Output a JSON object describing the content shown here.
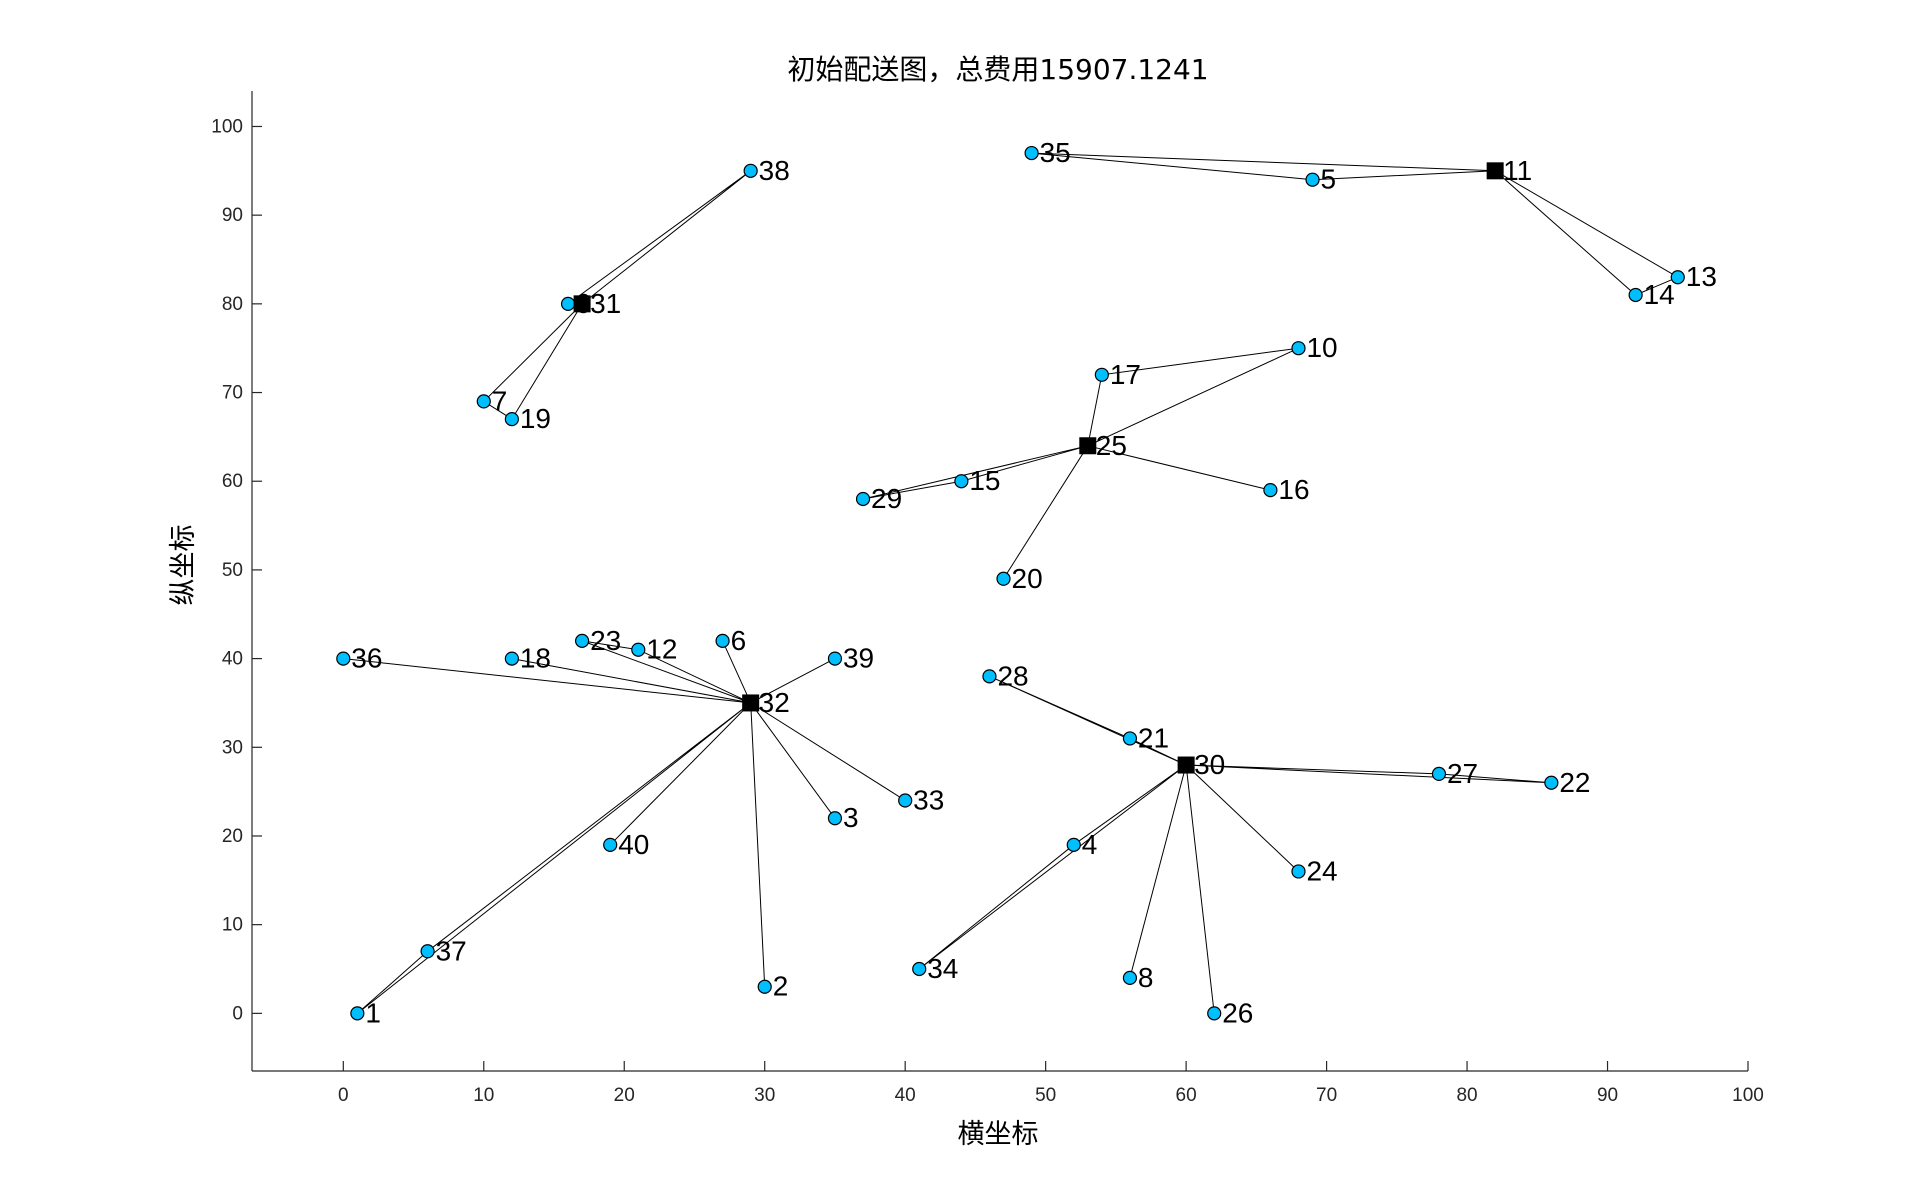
{
  "chart_data": {
    "type": "scatter",
    "title": "初始配送图，总费用15907.1241",
    "xlabel": "横坐标",
    "ylabel": "纵坐标",
    "xlim": [
      -6.5,
      100
    ],
    "ylim": [
      -6.5,
      104
    ],
    "xticks": [
      0,
      10,
      20,
      30,
      40,
      50,
      60,
      70,
      80,
      90,
      100
    ],
    "yticks": [
      0,
      10,
      20,
      30,
      40,
      50,
      60,
      70,
      80,
      90,
      100
    ],
    "grid": false,
    "colors": {
      "customer": "#00bfff",
      "depot": "#000000",
      "line": "#000000"
    },
    "customers": [
      {
        "id": "1",
        "x": 1,
        "y": 0
      },
      {
        "id": "2",
        "x": 30,
        "y": 3
      },
      {
        "id": "3",
        "x": 35,
        "y": 22
      },
      {
        "id": "4",
        "x": 52,
        "y": 19
      },
      {
        "id": "5",
        "x": 69,
        "y": 94
      },
      {
        "id": "6",
        "x": 27,
        "y": 42
      },
      {
        "id": "7",
        "x": 10,
        "y": 69
      },
      {
        "id": "8",
        "x": 56,
        "y": 4
      },
      {
        "id": "9",
        "x": 16,
        "y": 80
      },
      {
        "id": "10",
        "x": 68,
        "y": 75
      },
      {
        "id": "12",
        "x": 21,
        "y": 41
      },
      {
        "id": "13",
        "x": 95,
        "y": 83
      },
      {
        "id": "14",
        "x": 92,
        "y": 81
      },
      {
        "id": "15",
        "x": 44,
        "y": 60
      },
      {
        "id": "16",
        "x": 66,
        "y": 59
      },
      {
        "id": "17",
        "x": 54,
        "y": 72
      },
      {
        "id": "18",
        "x": 12,
        "y": 40
      },
      {
        "id": "19",
        "x": 12,
        "y": 67
      },
      {
        "id": "20",
        "x": 47,
        "y": 49
      },
      {
        "id": "21",
        "x": 56,
        "y": 31
      },
      {
        "id": "22",
        "x": 86,
        "y": 26
      },
      {
        "id": "23",
        "x": 17,
        "y": 42
      },
      {
        "id": "24",
        "x": 68,
        "y": 16
      },
      {
        "id": "26",
        "x": 62,
        "y": 0
      },
      {
        "id": "27",
        "x": 78,
        "y": 27
      },
      {
        "id": "28",
        "x": 46,
        "y": 38
      },
      {
        "id": "29",
        "x": 37,
        "y": 58
      },
      {
        "id": "33",
        "x": 40,
        "y": 24
      },
      {
        "id": "34",
        "x": 41,
        "y": 5
      },
      {
        "id": "35",
        "x": 49,
        "y": 97
      },
      {
        "id": "36",
        "x": 0,
        "y": 40
      },
      {
        "id": "37",
        "x": 6,
        "y": 7
      },
      {
        "id": "38",
        "x": 29,
        "y": 95
      },
      {
        "id": "39",
        "x": 35,
        "y": 40
      },
      {
        "id": "40",
        "x": 19,
        "y": 19
      }
    ],
    "depots": [
      {
        "id": "11",
        "x": 82,
        "y": 95
      },
      {
        "id": "25",
        "x": 53,
        "y": 64
      },
      {
        "id": "30",
        "x": 60,
        "y": 28
      },
      {
        "id": "31",
        "x": 17,
        "y": 80
      },
      {
        "id": "32",
        "x": 29,
        "y": 35
      }
    ],
    "routes": [
      {
        "depot": "11",
        "customers": [
          "35",
          "5"
        ]
      },
      {
        "depot": "11",
        "customers": [
          "14",
          "13"
        ]
      },
      {
        "depot": "31",
        "customers": [
          "38",
          "9"
        ]
      },
      {
        "depot": "31",
        "customers": [
          "7",
          "19"
        ]
      },
      {
        "depot": "25",
        "customers": [
          "17",
          "10"
        ]
      },
      {
        "depot": "25",
        "customers": [
          "29",
          "15"
        ]
      },
      {
        "depot": "25",
        "customers": [
          "16"
        ]
      },
      {
        "depot": "25",
        "customers": [
          "20"
        ]
      },
      {
        "depot": "32",
        "customers": [
          "36"
        ]
      },
      {
        "depot": "32",
        "customers": [
          "18"
        ]
      },
      {
        "depot": "32",
        "customers": [
          "23",
          "12"
        ]
      },
      {
        "depot": "32",
        "customers": [
          "6"
        ]
      },
      {
        "depot": "32",
        "customers": [
          "39"
        ]
      },
      {
        "depot": "32",
        "customers": [
          "33"
        ]
      },
      {
        "depot": "32",
        "customers": [
          "3"
        ]
      },
      {
        "depot": "32",
        "customers": [
          "2"
        ]
      },
      {
        "depot": "32",
        "customers": [
          "40"
        ]
      },
      {
        "depot": "32",
        "customers": [
          "37",
          "1"
        ]
      },
      {
        "depot": "30",
        "customers": [
          "28",
          "21"
        ]
      },
      {
        "depot": "30",
        "customers": [
          "27",
          "22"
        ]
      },
      {
        "depot": "30",
        "customers": [
          "24"
        ]
      },
      {
        "depot": "30",
        "customers": [
          "26"
        ]
      },
      {
        "depot": "30",
        "customers": [
          "8"
        ]
      },
      {
        "depot": "30",
        "customers": [
          "34",
          "4"
        ]
      }
    ]
  }
}
